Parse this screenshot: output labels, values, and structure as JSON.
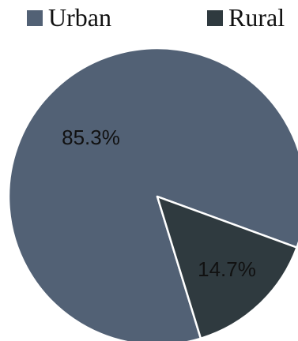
{
  "chart_data": {
    "type": "pie",
    "legend": {
      "position": "top",
      "entries": [
        {
          "name": "Urban",
          "color": "#526175"
        },
        {
          "name": "Rural",
          "color": "#2f3a3f"
        }
      ]
    },
    "slices": [
      {
        "name": "Urban",
        "value": 85.3,
        "label": "85.3%",
        "color": "#526175"
      },
      {
        "name": "Rural",
        "value": 14.7,
        "label": "14.7%",
        "color": "#2f3a3f"
      }
    ]
  },
  "colors": {
    "slice_border": "#ffffff"
  }
}
